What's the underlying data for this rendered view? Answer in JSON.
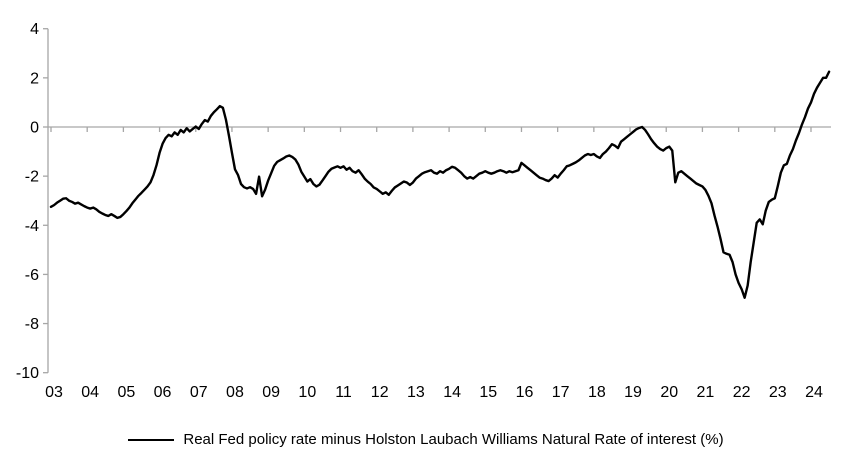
{
  "figure": {
    "background": "#ffffff",
    "axis_color": "#a6a6a6",
    "series_color": "#000000",
    "label_color": "#000000"
  },
  "legend": {
    "label": "Real Fed policy rate minus Holston Laubach Williams Natural Rate of interest (%)"
  },
  "chart_data": {
    "type": "line",
    "title": "",
    "xlabel": "",
    "ylabel": "",
    "legend_position": "bottom-center",
    "grid": "zero-line-only",
    "ylim": [
      -10,
      4
    ],
    "y_ticks": [
      4,
      2,
      0,
      -2,
      -4,
      -6,
      -8,
      -10
    ],
    "x_tick_labels": [
      "03",
      "04",
      "05",
      "06",
      "07",
      "08",
      "09",
      "10",
      "11",
      "12",
      "13",
      "14",
      "15",
      "16",
      "17",
      "18",
      "19",
      "20",
      "21",
      "22",
      "23",
      "24"
    ],
    "x_start_year": 2003,
    "x_frequency": "monthly",
    "series": [
      {
        "name": "Real Fed policy rate minus Holston Laubach Williams Natural Rate of interest (%)",
        "color": "#000000",
        "values": [
          -3.25,
          -3.18,
          -3.08,
          -3.0,
          -2.92,
          -2.9,
          -3.0,
          -3.05,
          -3.12,
          -3.08,
          -3.15,
          -3.22,
          -3.28,
          -3.32,
          -3.28,
          -3.35,
          -3.45,
          -3.52,
          -3.58,
          -3.62,
          -3.55,
          -3.62,
          -3.7,
          -3.66,
          -3.55,
          -3.42,
          -3.28,
          -3.1,
          -2.95,
          -2.8,
          -2.68,
          -2.55,
          -2.42,
          -2.25,
          -1.95,
          -1.55,
          -1.05,
          -0.68,
          -0.45,
          -0.32,
          -0.38,
          -0.22,
          -0.32,
          -0.12,
          -0.22,
          -0.05,
          -0.18,
          -0.08,
          0.02,
          -0.08,
          0.12,
          0.28,
          0.22,
          0.45,
          0.6,
          0.72,
          0.85,
          0.78,
          0.3,
          -0.35,
          -1.05,
          -1.72,
          -1.95,
          -2.32,
          -2.45,
          -2.5,
          -2.45,
          -2.52,
          -2.72,
          -2.02,
          -2.82,
          -2.55,
          -2.18,
          -1.88,
          -1.58,
          -1.42,
          -1.35,
          -1.28,
          -1.2,
          -1.16,
          -1.22,
          -1.32,
          -1.52,
          -1.82,
          -2.02,
          -2.22,
          -2.12,
          -2.32,
          -2.42,
          -2.35,
          -2.18,
          -2.0,
          -1.82,
          -1.7,
          -1.65,
          -1.6,
          -1.66,
          -1.6,
          -1.74,
          -1.66,
          -1.8,
          -1.86,
          -1.76,
          -1.92,
          -2.1,
          -2.22,
          -2.32,
          -2.46,
          -2.52,
          -2.62,
          -2.72,
          -2.66,
          -2.76,
          -2.6,
          -2.46,
          -2.38,
          -2.3,
          -2.22,
          -2.26,
          -2.36,
          -2.26,
          -2.1,
          -2.0,
          -1.9,
          -1.84,
          -1.8,
          -1.76,
          -1.86,
          -1.9,
          -1.8,
          -1.86,
          -1.76,
          -1.7,
          -1.62,
          -1.66,
          -1.76,
          -1.86,
          -2.0,
          -2.1,
          -2.04,
          -2.1,
          -2.0,
          -1.9,
          -1.86,
          -1.8,
          -1.86,
          -1.9,
          -1.86,
          -1.8,
          -1.76,
          -1.8,
          -1.86,
          -1.8,
          -1.84,
          -1.8,
          -1.76,
          -1.46,
          -1.56,
          -1.66,
          -1.76,
          -1.86,
          -1.96,
          -2.06,
          -2.1,
          -2.16,
          -2.2,
          -2.1,
          -1.96,
          -2.06,
          -1.9,
          -1.76,
          -1.6,
          -1.56,
          -1.5,
          -1.44,
          -1.36,
          -1.26,
          -1.16,
          -1.1,
          -1.14,
          -1.1,
          -1.2,
          -1.26,
          -1.1,
          -1.0,
          -0.86,
          -0.7,
          -0.76,
          -0.86,
          -0.6,
          -0.5,
          -0.4,
          -0.3,
          -0.2,
          -0.1,
          -0.04,
          0.0,
          -0.12,
          -0.3,
          -0.5,
          -0.66,
          -0.8,
          -0.9,
          -0.96,
          -0.86,
          -0.8,
          -0.96,
          -2.25,
          -1.86,
          -1.8,
          -1.9,
          -2.0,
          -2.1,
          -2.2,
          -2.3,
          -2.36,
          -2.42,
          -2.56,
          -2.8,
          -3.1,
          -3.6,
          -4.05,
          -4.55,
          -5.1,
          -5.16,
          -5.2,
          -5.5,
          -6.0,
          -6.35,
          -6.6,
          -6.95,
          -6.45,
          -5.5,
          -4.7,
          -3.9,
          -3.76,
          -3.96,
          -3.4,
          -3.05,
          -2.96,
          -2.9,
          -2.4,
          -1.86,
          -1.56,
          -1.5,
          -1.16,
          -0.9,
          -0.55,
          -0.25,
          0.1,
          0.4,
          0.75,
          1.0,
          1.35,
          1.6,
          1.8,
          2.0,
          2.0,
          2.25
        ]
      }
    ]
  }
}
